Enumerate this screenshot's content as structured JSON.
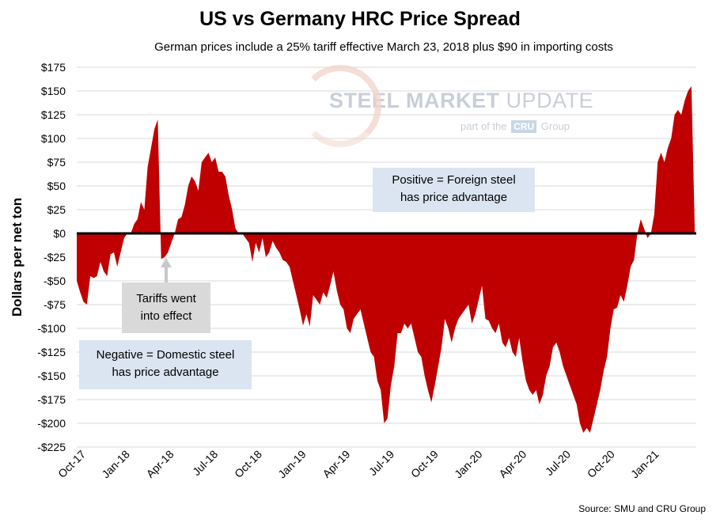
{
  "chart_data": {
    "type": "area",
    "title": "US vs Germany HRC Price Spread",
    "subtitle": "German prices include a 25% tariff effective March 23, 2018 plus $90 in importing costs",
    "ylabel": "Dollars per net ton",
    "xlabel": "",
    "ylim": [
      -225,
      175
    ],
    "y_ticks": [
      175,
      150,
      125,
      100,
      75,
      50,
      25,
      0,
      -25,
      -50,
      -75,
      -100,
      -125,
      -150,
      -175,
      -200,
      -225
    ],
    "y_tick_labels": [
      "$175",
      "$150",
      "$125",
      "$100",
      "$75",
      "$50",
      "$25",
      "$0",
      "-$25",
      "-$50",
      "-$75",
      "-$100",
      "-$125",
      "-$150",
      "-$175",
      "-$200",
      "-$225"
    ],
    "x_tick_labels": [
      "Oct-17",
      "Jan-18",
      "Apr-18",
      "Jul-18",
      "Oct-18",
      "Jan-19",
      "Apr-19",
      "Jul-19",
      "Oct-19",
      "Jan-20",
      "Apr-20",
      "Jul-20",
      "Oct-20",
      "Jan-21"
    ],
    "x_range": [
      "2017-10-01",
      "2021-04-07"
    ],
    "grid": "horizontal",
    "fill_color": "#c00000",
    "zero_line_color": "#000000",
    "series": [
      {
        "values": [
          [
            "2017-10-01",
            -50
          ],
          [
            "2017-10-08",
            -62
          ],
          [
            "2017-10-15",
            -72
          ],
          [
            "2017-10-22",
            -75
          ],
          [
            "2017-10-29",
            -45
          ],
          [
            "2017-11-05",
            -47
          ],
          [
            "2017-11-12",
            -45
          ],
          [
            "2017-11-19",
            -30
          ],
          [
            "2017-11-26",
            -40
          ],
          [
            "2017-12-03",
            -45
          ],
          [
            "2017-12-10",
            -22
          ],
          [
            "2017-12-17",
            -20
          ],
          [
            "2017-12-24",
            -35
          ],
          [
            "2017-12-31",
            -20
          ],
          [
            "2018-01-07",
            -5
          ],
          [
            "2018-01-14",
            0
          ],
          [
            "2018-01-21",
            0
          ],
          [
            "2018-01-28",
            10
          ],
          [
            "2018-02-04",
            15
          ],
          [
            "2018-02-11",
            33
          ],
          [
            "2018-02-18",
            25
          ],
          [
            "2018-02-25",
            70
          ],
          [
            "2018-03-04",
            90
          ],
          [
            "2018-03-11",
            110
          ],
          [
            "2018-03-18",
            120
          ],
          [
            "2018-03-25",
            -27
          ],
          [
            "2018-04-01",
            -25
          ],
          [
            "2018-04-08",
            -20
          ],
          [
            "2018-04-15",
            -10
          ],
          [
            "2018-04-22",
            0
          ],
          [
            "2018-04-29",
            15
          ],
          [
            "2018-05-06",
            17
          ],
          [
            "2018-05-13",
            30
          ],
          [
            "2018-05-20",
            50
          ],
          [
            "2018-05-27",
            60
          ],
          [
            "2018-06-03",
            55
          ],
          [
            "2018-06-10",
            45
          ],
          [
            "2018-06-17",
            75
          ],
          [
            "2018-06-24",
            80
          ],
          [
            "2018-07-01",
            85
          ],
          [
            "2018-07-08",
            75
          ],
          [
            "2018-07-15",
            80
          ],
          [
            "2018-07-22",
            65
          ],
          [
            "2018-07-29",
            65
          ],
          [
            "2018-08-05",
            60
          ],
          [
            "2018-08-12",
            40
          ],
          [
            "2018-08-19",
            25
          ],
          [
            "2018-08-26",
            5
          ],
          [
            "2018-09-02",
            0
          ],
          [
            "2018-09-09",
            0
          ],
          [
            "2018-09-16",
            -5
          ],
          [
            "2018-09-23",
            -10
          ],
          [
            "2018-09-30",
            -30
          ],
          [
            "2018-10-07",
            -10
          ],
          [
            "2018-10-14",
            -20
          ],
          [
            "2018-10-21",
            -5
          ],
          [
            "2018-10-28",
            -25
          ],
          [
            "2018-11-04",
            -20
          ],
          [
            "2018-11-11",
            -8
          ],
          [
            "2018-11-18",
            -15
          ],
          [
            "2018-11-25",
            -20
          ],
          [
            "2018-12-02",
            -28
          ],
          [
            "2018-12-09",
            -30
          ],
          [
            "2018-12-16",
            -35
          ],
          [
            "2018-12-23",
            -50
          ],
          [
            "2018-12-30",
            -65
          ],
          [
            "2019-01-06",
            -80
          ],
          [
            "2019-01-13",
            -97
          ],
          [
            "2019-01-20",
            -85
          ],
          [
            "2019-01-27",
            -98
          ],
          [
            "2019-02-03",
            -65
          ],
          [
            "2019-02-10",
            -70
          ],
          [
            "2019-02-17",
            -75
          ],
          [
            "2019-02-24",
            -62
          ],
          [
            "2019-03-03",
            -68
          ],
          [
            "2019-03-10",
            -55
          ],
          [
            "2019-03-17",
            -40
          ],
          [
            "2019-03-24",
            -60
          ],
          [
            "2019-03-31",
            -75
          ],
          [
            "2019-04-07",
            -80
          ],
          [
            "2019-04-14",
            -100
          ],
          [
            "2019-04-21",
            -105
          ],
          [
            "2019-04-28",
            -90
          ],
          [
            "2019-05-05",
            -85
          ],
          [
            "2019-05-12",
            -80
          ],
          [
            "2019-05-19",
            -95
          ],
          [
            "2019-05-26",
            -110
          ],
          [
            "2019-06-02",
            -125
          ],
          [
            "2019-06-09",
            -130
          ],
          [
            "2019-06-16",
            -155
          ],
          [
            "2019-06-23",
            -165
          ],
          [
            "2019-06-30",
            -200
          ],
          [
            "2019-07-07",
            -195
          ],
          [
            "2019-07-14",
            -160
          ],
          [
            "2019-07-21",
            -140
          ],
          [
            "2019-07-28",
            -105
          ],
          [
            "2019-08-04",
            -105
          ],
          [
            "2019-08-11",
            -95
          ],
          [
            "2019-08-18",
            -100
          ],
          [
            "2019-08-25",
            -95
          ],
          [
            "2019-09-01",
            -110
          ],
          [
            "2019-09-08",
            -125
          ],
          [
            "2019-09-15",
            -130
          ],
          [
            "2019-09-22",
            -150
          ],
          [
            "2019-09-29",
            -165
          ],
          [
            "2019-10-06",
            -178
          ],
          [
            "2019-10-13",
            -160
          ],
          [
            "2019-10-20",
            -140
          ],
          [
            "2019-10-27",
            -120
          ],
          [
            "2019-11-03",
            -90
          ],
          [
            "2019-11-10",
            -100
          ],
          [
            "2019-11-17",
            -115
          ],
          [
            "2019-11-24",
            -100
          ],
          [
            "2019-12-01",
            -90
          ],
          [
            "2019-12-08",
            -85
          ],
          [
            "2019-12-15",
            -80
          ],
          [
            "2019-12-22",
            -75
          ],
          [
            "2019-12-29",
            -95
          ],
          [
            "2020-01-05",
            -85
          ],
          [
            "2020-01-12",
            -70
          ],
          [
            "2020-01-19",
            -55
          ],
          [
            "2020-01-26",
            -90
          ],
          [
            "2020-02-02",
            -92
          ],
          [
            "2020-02-09",
            -100
          ],
          [
            "2020-02-16",
            -105
          ],
          [
            "2020-02-23",
            -95
          ],
          [
            "2020-03-01",
            -115
          ],
          [
            "2020-03-08",
            -120
          ],
          [
            "2020-03-15",
            -110
          ],
          [
            "2020-03-22",
            -125
          ],
          [
            "2020-03-29",
            -130
          ],
          [
            "2020-04-05",
            -110
          ],
          [
            "2020-04-12",
            -135
          ],
          [
            "2020-04-19",
            -155
          ],
          [
            "2020-04-26",
            -165
          ],
          [
            "2020-05-03",
            -170
          ],
          [
            "2020-05-10",
            -165
          ],
          [
            "2020-05-17",
            -180
          ],
          [
            "2020-05-24",
            -170
          ],
          [
            "2020-05-31",
            -150
          ],
          [
            "2020-06-07",
            -140
          ],
          [
            "2020-06-14",
            -120
          ],
          [
            "2020-06-21",
            -115
          ],
          [
            "2020-06-28",
            -125
          ],
          [
            "2020-07-05",
            -140
          ],
          [
            "2020-07-12",
            -150
          ],
          [
            "2020-07-19",
            -160
          ],
          [
            "2020-07-26",
            -170
          ],
          [
            "2020-08-02",
            -180
          ],
          [
            "2020-08-09",
            -200
          ],
          [
            "2020-08-16",
            -210
          ],
          [
            "2020-08-23",
            -205
          ],
          [
            "2020-08-30",
            -210
          ],
          [
            "2020-09-06",
            -195
          ],
          [
            "2020-09-13",
            -180
          ],
          [
            "2020-09-20",
            -165
          ],
          [
            "2020-09-27",
            -145
          ],
          [
            "2020-10-04",
            -130
          ],
          [
            "2020-10-11",
            -100
          ],
          [
            "2020-10-18",
            -80
          ],
          [
            "2020-10-25",
            -78
          ],
          [
            "2020-11-01",
            -65
          ],
          [
            "2020-11-08",
            -72
          ],
          [
            "2020-11-15",
            -55
          ],
          [
            "2020-11-22",
            -35
          ],
          [
            "2020-11-29",
            -28
          ],
          [
            "2020-12-06",
            0
          ],
          [
            "2020-12-13",
            15
          ],
          [
            "2020-12-20",
            5
          ],
          [
            "2020-12-27",
            -5
          ],
          [
            "2021-01-03",
            0
          ],
          [
            "2021-01-10",
            20
          ],
          [
            "2021-01-17",
            75
          ],
          [
            "2021-01-24",
            85
          ],
          [
            "2021-01-31",
            75
          ],
          [
            "2021-02-07",
            90
          ],
          [
            "2021-02-14",
            100
          ],
          [
            "2021-02-21",
            125
          ],
          [
            "2021-02-28",
            130
          ],
          [
            "2021-03-07",
            125
          ],
          [
            "2021-03-14",
            140
          ],
          [
            "2021-03-21",
            150
          ],
          [
            "2021-03-28",
            155
          ],
          [
            "2021-04-04",
            0
          ]
        ]
      }
    ],
    "annotations": {
      "positive_line1": "Positive = Foreign steel",
      "positive_line2": "has price advantage",
      "negative_line1": "Negative = Domestic steel",
      "negative_line2": "has price advantage",
      "tariff_line1": "Tariffs went",
      "tariff_line2": "into effect"
    },
    "source": "Source: SMU and CRU Group"
  },
  "logo": {
    "steel": "STEEL",
    "market": "MARKET",
    "update": "UPDATE",
    "part_of": "part of the",
    "cru": "CRU",
    "group": "Group"
  }
}
